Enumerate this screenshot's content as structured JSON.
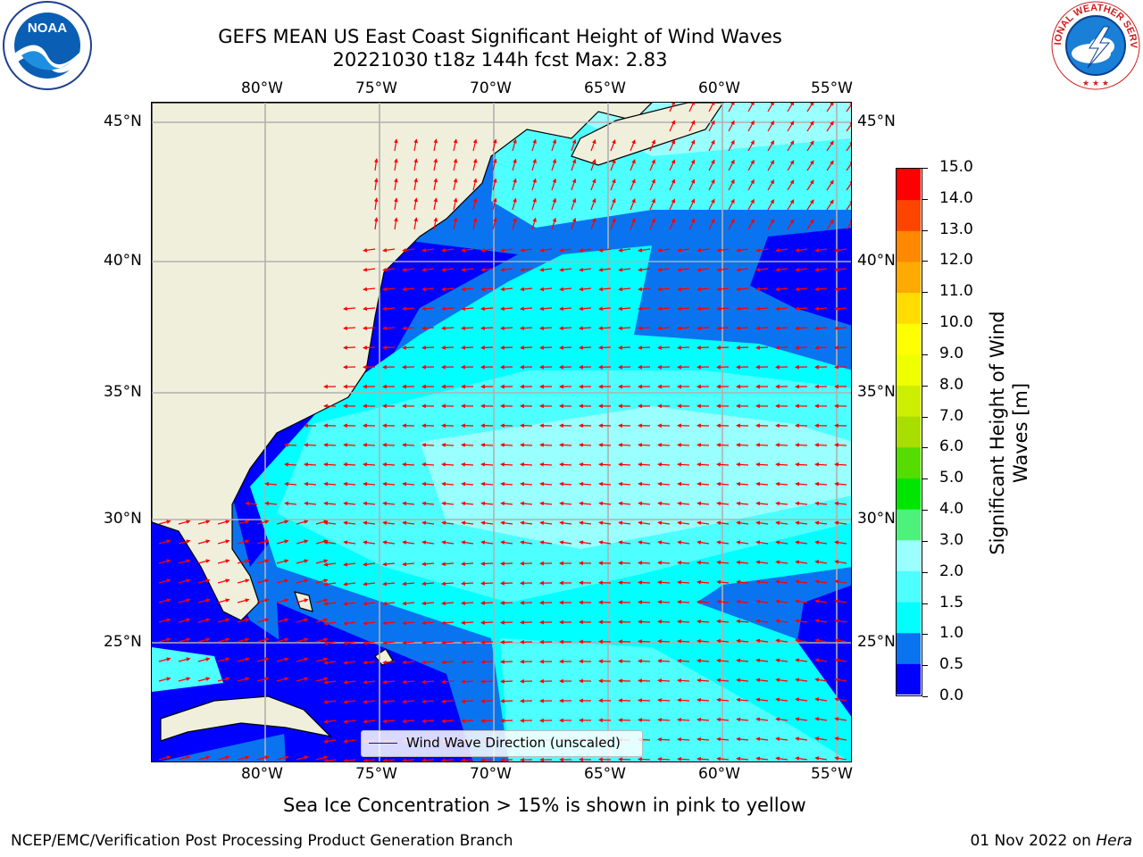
{
  "header": {
    "title_line1": "GEFS MEAN US East Coast Significant Height of Wind Waves",
    "title_line2": "20221030 t18z 144h fcst   Max: 2.83"
  },
  "logos": {
    "left_text": "NOAA",
    "right_text": "NATIONAL WEATHER SERVICE"
  },
  "map": {
    "lon_labels": [
      "80°W",
      "75°W",
      "70°W",
      "65°W",
      "60°W",
      "55°W"
    ],
    "lat_labels": [
      "45°N",
      "40°N",
      "35°N",
      "30°N",
      "25°N"
    ],
    "legend_label": "Wind Wave Direction (unscaled)",
    "colors": {
      "land": "#efefdc",
      "gridline": "#b0b0b0",
      "arrow": "#ff0000"
    }
  },
  "colorbar": {
    "label": "Significant Height of Wind Waves [m]",
    "ticks": [
      "0.0",
      "0.5",
      "1.0",
      "1.5",
      "2.0",
      "3.0",
      "4.0",
      "5.0",
      "6.0",
      "7.0",
      "8.0",
      "9.0",
      "10.0",
      "11.0",
      "12.0",
      "13.0",
      "14.0",
      "15.0"
    ],
    "colors": [
      "#0000ff",
      "#0a74f0",
      "#00ffff",
      "#4dffff",
      "#99ffff",
      "#4df27a",
      "#00e600",
      "#55dd00",
      "#aadd00",
      "#ccee00",
      "#eeff00",
      "#ffff00",
      "#ffdd00",
      "#ffaa00",
      "#ff8800",
      "#ff4400",
      "#ff0000"
    ]
  },
  "footer": {
    "sea_ice_note": "Sea Ice Concentration > 15% is shown in pink to yellow",
    "branch": "NCEP/EMC/Verification Post Processing Product Generation Branch",
    "date_prefix": "01 Nov 2022 on ",
    "machine": "Hera"
  }
}
